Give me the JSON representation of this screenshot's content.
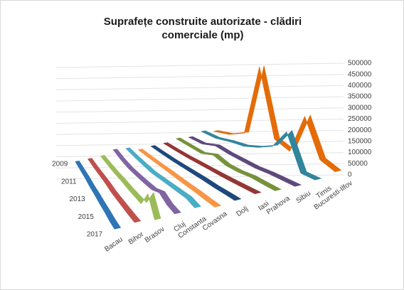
{
  "chart_data": {
    "type": "ribbon3d",
    "title": "Suprafețe construite autorizate - clădiri comerciale (mp)",
    "categories": [
      "2009",
      null,
      "2011",
      null,
      "2013",
      null,
      "2015",
      null,
      "2017"
    ],
    "series": [
      {
        "name": "Bacau",
        "color": "#2e75b6",
        "values": [
          5000,
          6000,
          8000,
          7000,
          9000,
          8000,
          10000,
          9000,
          12000
        ]
      },
      {
        "name": "Bihor",
        "color": "#c0504d",
        "values": [
          6000,
          5000,
          7000,
          8000,
          6000,
          9000,
          12000,
          15000,
          20000
        ]
      },
      {
        "name": "Brasov",
        "color": "#9bbb59",
        "values": [
          8000,
          6000,
          5000,
          7000,
          6000,
          8000,
          10000,
          90000,
          10000
        ]
      },
      {
        "name": "Cluj",
        "color": "#8064a2",
        "values": [
          25000,
          15000,
          10000,
          12000,
          15000,
          20000,
          40000,
          20000,
          15000
        ]
      },
      {
        "name": "Constanta",
        "color": "#4bacc6",
        "values": [
          20000,
          15000,
          12000,
          10000,
          15000,
          20000,
          25000,
          30000,
          20000
        ]
      },
      {
        "name": "Covasna",
        "color": "#f79646",
        "values": [
          3000,
          2000,
          2000,
          3000,
          2000,
          2000,
          3000,
          2000,
          2000
        ]
      },
      {
        "name": "Dolj",
        "color": "#1f497d",
        "values": [
          8000,
          6000,
          5000,
          6000,
          7000,
          8000,
          7000,
          9000,
          10000
        ]
      },
      {
        "name": "Iasi",
        "color": "#943634",
        "values": [
          10000,
          8000,
          7000,
          8000,
          9000,
          10000,
          12000,
          15000,
          18000
        ]
      },
      {
        "name": "Prahova",
        "color": "#76923c",
        "values": [
          20000,
          15000,
          10000,
          30000,
          12000,
          10000,
          15000,
          12000,
          10000
        ]
      },
      {
        "name": "Sibiu",
        "color": "#5f497a",
        "values": [
          15000,
          12000,
          30000,
          20000,
          15000,
          10000,
          12000,
          10000,
          8000
        ]
      },
      {
        "name": "Timis",
        "color": "#31859c",
        "values": [
          30000,
          25000,
          35000,
          40000,
          60000,
          90000,
          180000,
          20000,
          15000
        ]
      },
      {
        "name": "Bucuresti-Ilfov",
        "color": "#e36c09",
        "values": [
          20000,
          30000,
          60000,
          380000,
          80000,
          50000,
          230000,
          60000,
          30000
        ]
      }
    ],
    "ylim": [
      0,
      500000
    ],
    "yticks": [
      0,
      50000,
      100000,
      150000,
      200000,
      250000,
      300000,
      350000,
      400000,
      450000,
      500000
    ],
    "grid": true
  }
}
